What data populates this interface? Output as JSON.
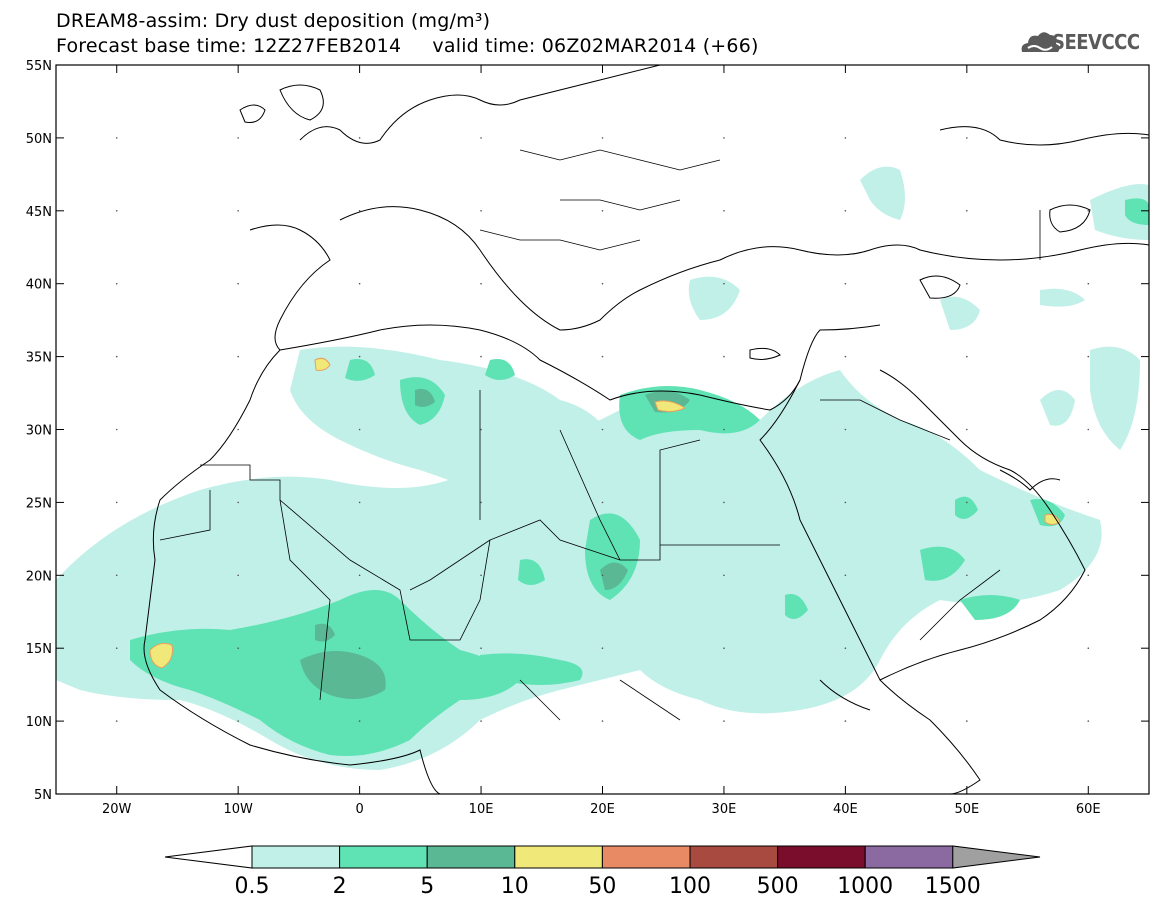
{
  "header": {
    "title_line1": "DREAM8-assim: Dry dust deposition (mg/m³)",
    "title_line2": "Forecast base time: 12Z27FEB2014     valid time: 06Z02MAR2014 (+66)"
  },
  "logo": {
    "text": "SEEVCCC",
    "icon": "cloud-logo-icon",
    "color": "#5a5a5a"
  },
  "map": {
    "lon_range": [
      -25,
      65
    ],
    "lat_range": [
      5,
      55
    ],
    "lat_ticks": [
      "5N",
      "10N",
      "15N",
      "20N",
      "25N",
      "30N",
      "35N",
      "40N",
      "45N",
      "50N",
      "55N"
    ],
    "lon_ticks": [
      "20W",
      "10W",
      "0",
      "10E",
      "20E",
      "30E",
      "40E",
      "50E",
      "60E"
    ]
  },
  "colorbar": {
    "labels": [
      "0.5",
      "2",
      "5",
      "10",
      "50",
      "100",
      "500",
      "1000",
      "1500"
    ],
    "colors": [
      "#c0f0e8",
      "#5fe2b4",
      "#5ab894",
      "#f0e878",
      "#e88a64",
      "#a84a40",
      "#7a0c2c",
      "#8a6aa0"
    ],
    "under_color": "#ffffff",
    "over_color": "#a0a0a0"
  }
}
